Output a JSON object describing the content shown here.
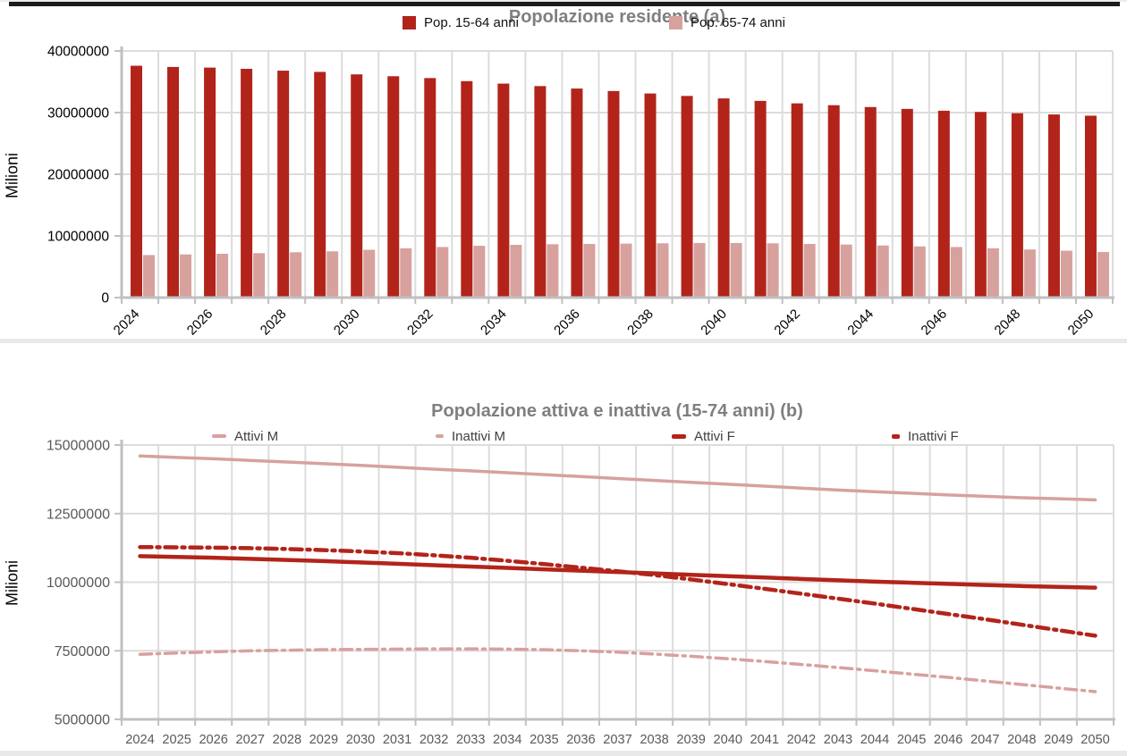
{
  "colors": {
    "dark_red": "#B2241A",
    "light_pink": "#D7A19E",
    "title_gray": "#7F7F7F",
    "axis_label_gray": "#595959",
    "tick_label_black": "#000000",
    "grid_gray": "#DCDCDC",
    "axis_gray": "#C0C0C0",
    "top_rule_dark": "#1B1B1B"
  },
  "chart_data": [
    {
      "type": "bar",
      "title": "Popolazione residente (a)",
      "xlabel": "",
      "ylabel": "Milioni",
      "ylim": [
        0,
        40000000
      ],
      "y_ticks": [
        0,
        10000000,
        20000000,
        30000000,
        40000000
      ],
      "grid": true,
      "legend_position": "top",
      "x_labels_shown": [
        "2024",
        "2026",
        "2028",
        "2030",
        "2032",
        "2034",
        "2036",
        "2038",
        "2040",
        "2042",
        "2044",
        "2046",
        "2048",
        "2050"
      ],
      "categories": [
        "2024",
        "2025",
        "2026",
        "2027",
        "2028",
        "2029",
        "2030",
        "2031",
        "2032",
        "2033",
        "2034",
        "2035",
        "2036",
        "2037",
        "2038",
        "2039",
        "2040",
        "2041",
        "2042",
        "2043",
        "2044",
        "2045",
        "2046",
        "2047",
        "2048",
        "2049",
        "2050"
      ],
      "series": [
        {
          "name": "Pop. 15-64 anni",
          "color": "#B2241A",
          "values": [
            37600000,
            37400000,
            37300000,
            37100000,
            36800000,
            36600000,
            36200000,
            35900000,
            35600000,
            35100000,
            34700000,
            34300000,
            33900000,
            33500000,
            33100000,
            32700000,
            32300000,
            31900000,
            31500000,
            31200000,
            30900000,
            30600000,
            30300000,
            30100000,
            29900000,
            29700000,
            29500000
          ]
        },
        {
          "name": "Pop. 65-74 anni",
          "color": "#D7A19E",
          "values": [
            6900000,
            7000000,
            7100000,
            7200000,
            7350000,
            7500000,
            7750000,
            8000000,
            8200000,
            8400000,
            8550000,
            8650000,
            8700000,
            8750000,
            8800000,
            8850000,
            8850000,
            8800000,
            8700000,
            8600000,
            8450000,
            8300000,
            8200000,
            8000000,
            7800000,
            7600000,
            7400000
          ]
        }
      ]
    },
    {
      "type": "line",
      "title": "Popolazione attiva e inattiva (15-74 anni) (b)",
      "xlabel": "",
      "ylabel": "Milioni",
      "ylim": [
        5000000,
        15000000
      ],
      "y_ticks": [
        5000000,
        7500000,
        10000000,
        12500000,
        15000000
      ],
      "grid": true,
      "legend_position": "top",
      "x": [
        "2024",
        "2025",
        "2026",
        "2027",
        "2028",
        "2029",
        "2030",
        "2031",
        "2032",
        "2033",
        "2034",
        "2035",
        "2036",
        "2037",
        "2038",
        "2039",
        "2040",
        "2041",
        "2042",
        "2043",
        "2044",
        "2045",
        "2046",
        "2047",
        "2048",
        "2049",
        "2050"
      ],
      "series": [
        {
          "name": "Attivi M",
          "color": "#D7A19E",
          "style": "solid",
          "width": 3.5,
          "values": [
            14600000,
            14550000,
            14500000,
            14440000,
            14380000,
            14320000,
            14260000,
            14190000,
            14120000,
            14060000,
            13990000,
            13920000,
            13850000,
            13780000,
            13710000,
            13640000,
            13570000,
            13500000,
            13430000,
            13360000,
            13300000,
            13240000,
            13180000,
            13130000,
            13080000,
            13040000,
            13000000
          ]
        },
        {
          "name": "Inattivi M",
          "color": "#D7A19E",
          "style": "dashdot",
          "width": 3.5,
          "values": [
            7370000,
            7420000,
            7460000,
            7500000,
            7520000,
            7540000,
            7550000,
            7560000,
            7570000,
            7570000,
            7560000,
            7540000,
            7500000,
            7450000,
            7380000,
            7300000,
            7210000,
            7110000,
            7000000,
            6890000,
            6770000,
            6650000,
            6530000,
            6400000,
            6270000,
            6140000,
            6010000
          ]
        },
        {
          "name": "Attivi F",
          "color": "#B2241A",
          "style": "solid",
          "width": 4.5,
          "values": [
            10950000,
            10920000,
            10890000,
            10850000,
            10810000,
            10770000,
            10720000,
            10670000,
            10620000,
            10570000,
            10520000,
            10470000,
            10420000,
            10370000,
            10320000,
            10270000,
            10220000,
            10170000,
            10120000,
            10070000,
            10020000,
            9980000,
            9940000,
            9900000,
            9860000,
            9830000,
            9800000
          ]
        },
        {
          "name": "Inattivi F",
          "color": "#B2241A",
          "style": "dashdot",
          "width": 4.5,
          "values": [
            11280000,
            11270000,
            11260000,
            11240000,
            11210000,
            11170000,
            11120000,
            11060000,
            10980000,
            10890000,
            10780000,
            10660000,
            10530000,
            10400000,
            10260000,
            10100000,
            9930000,
            9760000,
            9580000,
            9400000,
            9220000,
            9030000,
            8840000,
            8650000,
            8450000,
            8250000,
            8050000
          ]
        }
      ]
    }
  ]
}
